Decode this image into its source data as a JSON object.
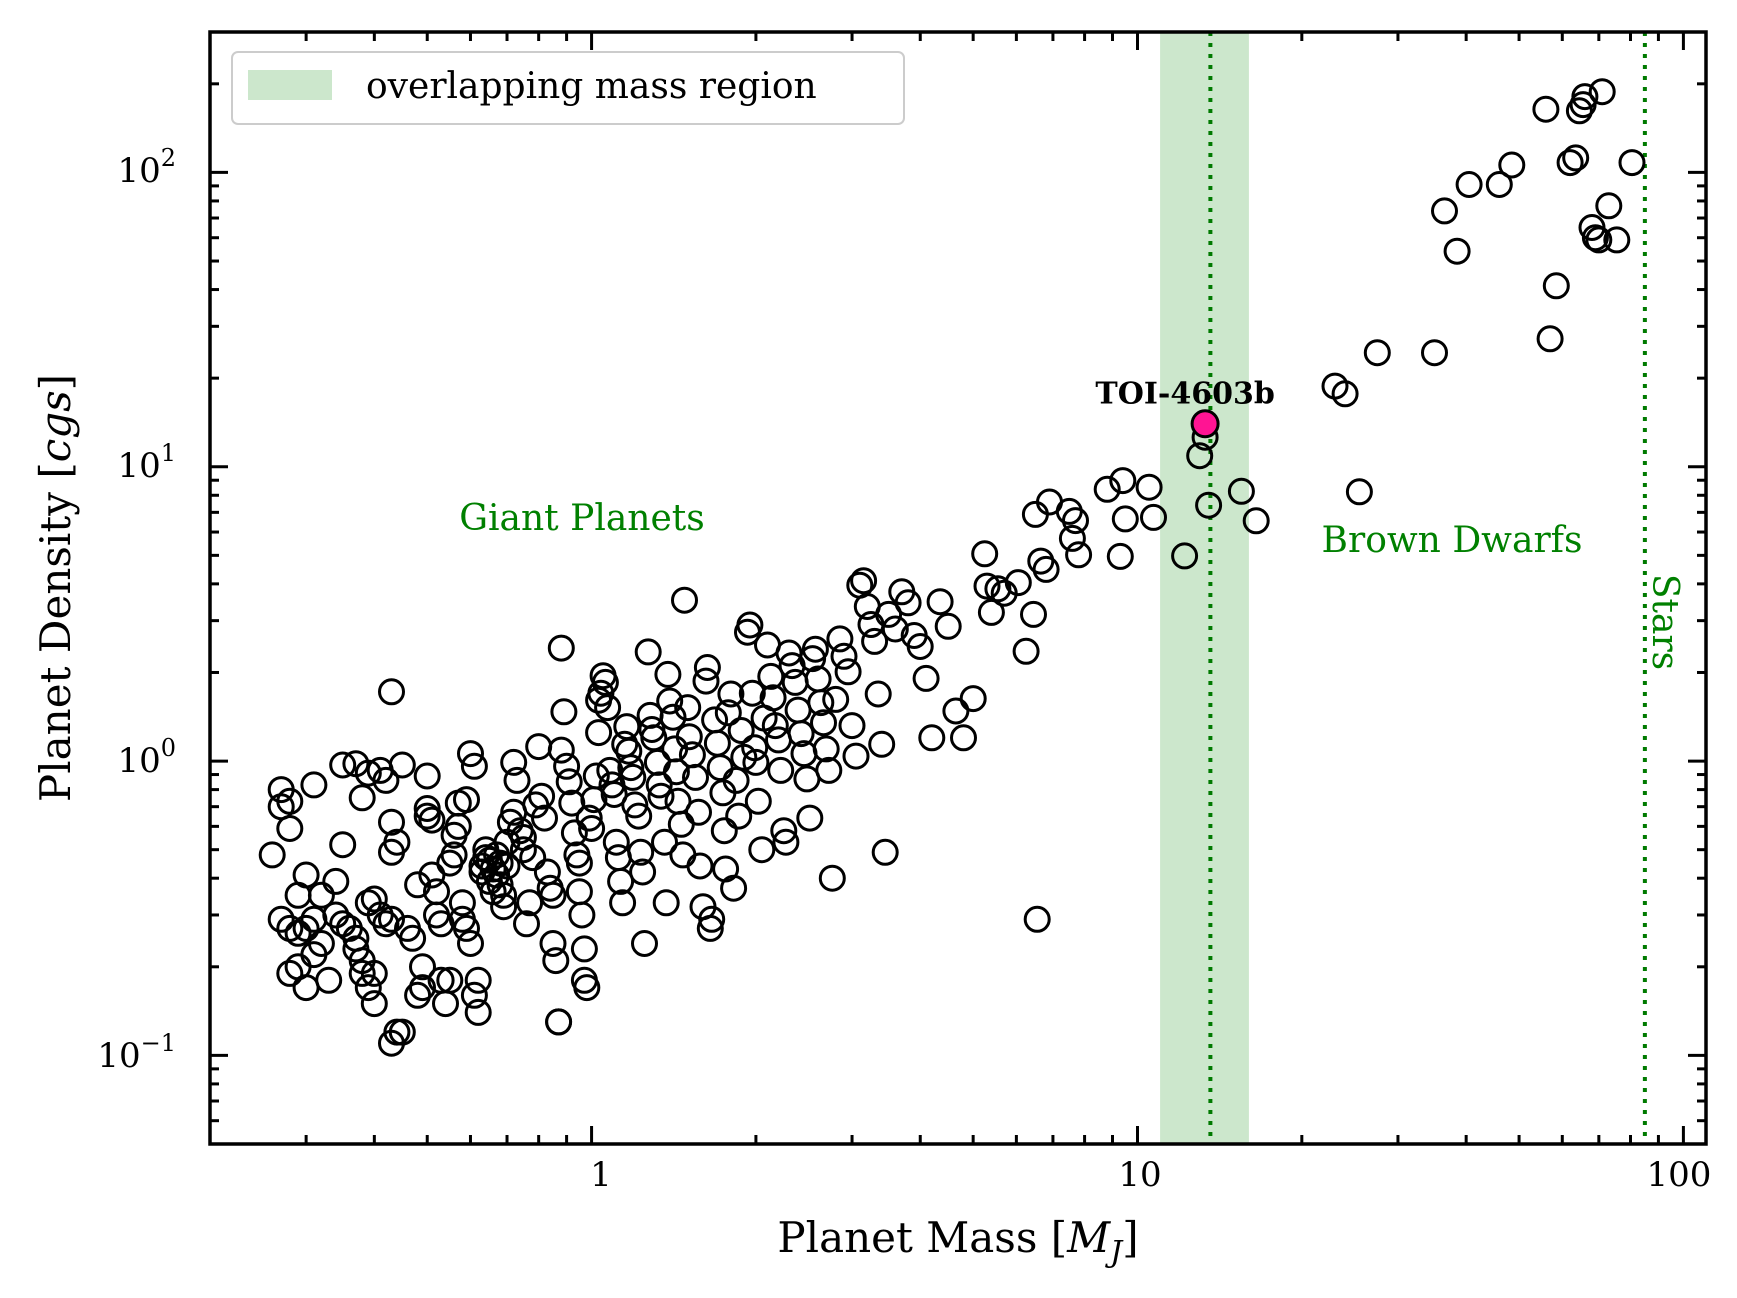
{
  "chart_data": {
    "type": "scatter",
    "xlabel": "Planet Mass [M_J]",
    "ylabel": "Planet Density [cgs]",
    "xscale": "log",
    "yscale": "log",
    "xlim": [
      0.2,
      110
    ],
    "ylim": [
      0.05,
      300
    ],
    "x_tick_labels": [
      "1",
      "10",
      "100"
    ],
    "y_tick_labels": [
      {
        "base": "10",
        "exp": "−1"
      },
      {
        "base": "10",
        "exp": "0"
      },
      {
        "base": "10",
        "exp": "1"
      },
      {
        "base": "10",
        "exp": "2"
      }
    ],
    "grid": false,
    "legend": {
      "position": "top-left",
      "entries": [
        "overlapping mass region"
      ]
    },
    "overlap_region": {
      "x_min": 11,
      "x_max": 16,
      "color": "#8fc98f"
    },
    "reference_lines": [
      {
        "x": 13.6,
        "style": "dotted",
        "color": "#007a00"
      },
      {
        "x": 85,
        "style": "dotted",
        "color": "#007a00"
      }
    ],
    "region_labels": {
      "giant_planets": "Giant Planets",
      "brown_dwarfs": "Brown Dwarfs",
      "stars": "Stars"
    },
    "highlight": {
      "name": "TOI-4603b",
      "x": 13.3,
      "y": 14.0,
      "color": "#ff1493"
    },
    "points": [
      [
        0.26,
        0.48
      ],
      [
        0.27,
        0.8
      ],
      [
        0.27,
        0.7
      ],
      [
        0.28,
        0.59
      ],
      [
        0.28,
        0.73
      ],
      [
        0.27,
        0.29
      ],
      [
        0.28,
        0.27
      ],
      [
        0.29,
        0.26
      ],
      [
        0.3,
        0.27
      ],
      [
        0.31,
        0.29
      ],
      [
        0.29,
        0.35
      ],
      [
        0.3,
        0.41
      ],
      [
        0.31,
        0.83
      ],
      [
        0.28,
        0.19
      ],
      [
        0.29,
        0.2
      ],
      [
        0.3,
        0.17
      ],
      [
        0.31,
        0.22
      ],
      [
        0.32,
        0.24
      ],
      [
        0.33,
        0.18
      ],
      [
        0.32,
        0.35
      ],
      [
        0.34,
        0.39
      ],
      [
        0.34,
        0.3
      ],
      [
        0.35,
        0.28
      ],
      [
        0.36,
        0.27
      ],
      [
        0.37,
        0.23
      ],
      [
        0.37,
        0.25
      ],
      [
        0.38,
        0.21
      ],
      [
        0.38,
        0.19
      ],
      [
        0.39,
        0.17
      ],
      [
        0.4,
        0.15
      ],
      [
        0.35,
        0.52
      ],
      [
        0.35,
        0.97
      ],
      [
        0.37,
        0.98
      ],
      [
        0.38,
        0.75
      ],
      [
        0.39,
        0.91
      ],
      [
        0.41,
        0.93
      ],
      [
        0.42,
        0.86
      ],
      [
        0.4,
        0.34
      ],
      [
        0.41,
        0.3
      ],
      [
        0.42,
        0.28
      ],
      [
        0.39,
        0.33
      ],
      [
        0.4,
        0.19
      ],
      [
        0.43,
        0.29
      ],
      [
        0.43,
        0.62
      ],
      [
        0.44,
        0.53
      ],
      [
        0.45,
        0.97
      ],
      [
        0.43,
        1.72
      ],
      [
        0.43,
        0.11
      ],
      [
        0.44,
        0.12
      ],
      [
        0.45,
        0.12
      ],
      [
        0.43,
        0.49
      ],
      [
        0.46,
        0.27
      ],
      [
        0.47,
        0.25
      ],
      [
        0.48,
        0.38
      ],
      [
        0.48,
        0.16
      ],
      [
        0.49,
        0.2
      ],
      [
        0.49,
        0.17
      ],
      [
        0.5,
        0.65
      ],
      [
        0.5,
        0.69
      ],
      [
        0.51,
        0.63
      ],
      [
        0.5,
        0.89
      ],
      [
        0.51,
        0.41
      ],
      [
        0.52,
        0.36
      ],
      [
        0.52,
        0.3
      ],
      [
        0.53,
        0.28
      ],
      [
        0.53,
        0.18
      ],
      [
        0.54,
        0.15
      ],
      [
        0.55,
        0.18
      ],
      [
        0.55,
        0.45
      ],
      [
        0.56,
        0.48
      ],
      [
        0.56,
        0.56
      ],
      [
        0.57,
        0.6
      ],
      [
        0.57,
        0.72
      ],
      [
        0.58,
        0.33
      ],
      [
        0.58,
        0.29
      ],
      [
        0.59,
        0.27
      ],
      [
        0.59,
        0.74
      ],
      [
        0.6,
        1.06
      ],
      [
        0.61,
        0.96
      ],
      [
        0.6,
        0.24
      ],
      [
        0.61,
        0.16
      ],
      [
        0.62,
        0.14
      ],
      [
        0.62,
        0.18
      ],
      [
        0.63,
        0.44
      ],
      [
        0.63,
        0.42
      ],
      [
        0.64,
        0.47
      ],
      [
        0.64,
        0.5
      ],
      [
        0.65,
        0.39
      ],
      [
        0.65,
        0.46
      ],
      [
        0.66,
        0.43
      ],
      [
        0.66,
        0.36
      ],
      [
        0.67,
        0.41
      ],
      [
        0.67,
        0.48
      ],
      [
        0.68,
        0.45
      ],
      [
        0.68,
        0.38
      ],
      [
        0.69,
        0.35
      ],
      [
        0.69,
        0.32
      ],
      [
        0.7,
        0.44
      ],
      [
        0.7,
        0.53
      ],
      [
        0.71,
        0.62
      ],
      [
        0.72,
        0.67
      ],
      [
        0.72,
        0.99
      ],
      [
        0.73,
        0.86
      ],
      [
        0.74,
        0.58
      ],
      [
        0.75,
        0.5
      ],
      [
        0.75,
        0.55
      ],
      [
        0.76,
        0.28
      ],
      [
        0.77,
        0.33
      ],
      [
        0.78,
        0.47
      ],
      [
        0.79,
        0.71
      ],
      [
        0.8,
        1.12
      ],
      [
        0.81,
        0.76
      ],
      [
        0.82,
        0.64
      ],
      [
        0.83,
        0.42
      ],
      [
        0.84,
        0.37
      ],
      [
        0.85,
        0.35
      ],
      [
        0.85,
        0.24
      ],
      [
        0.86,
        0.21
      ],
      [
        0.87,
        0.13
      ],
      [
        0.87,
        0.13
      ],
      [
        0.88,
        2.42
      ],
      [
        0.88,
        1.09
      ],
      [
        0.89,
        1.47
      ],
      [
        0.9,
        0.96
      ],
      [
        0.91,
        0.85
      ],
      [
        0.92,
        0.72
      ],
      [
        0.93,
        0.57
      ],
      [
        0.94,
        0.48
      ],
      [
        0.95,
        0.45
      ],
      [
        0.95,
        0.36
      ],
      [
        0.96,
        0.3
      ],
      [
        0.97,
        0.23
      ],
      [
        0.97,
        0.18
      ],
      [
        0.98,
        0.17
      ],
      [
        0.99,
        0.64
      ],
      [
        1.0,
        0.59
      ],
      [
        1.01,
        0.74
      ],
      [
        1.02,
        0.89
      ],
      [
        1.03,
        1.25
      ],
      [
        1.03,
        1.61
      ],
      [
        1.04,
        1.7
      ],
      [
        1.05,
        1.95
      ],
      [
        1.06,
        1.85
      ],
      [
        1.07,
        1.52
      ],
      [
        1.08,
        0.93
      ],
      [
        1.09,
        0.83
      ],
      [
        1.1,
        0.77
      ],
      [
        1.11,
        0.53
      ],
      [
        1.12,
        0.47
      ],
      [
        1.13,
        0.39
      ],
      [
        1.14,
        0.33
      ],
      [
        1.15,
        1.14
      ],
      [
        1.16,
        1.31
      ],
      [
        1.17,
        1.08
      ],
      [
        1.18,
        0.95
      ],
      [
        1.19,
        0.88
      ],
      [
        1.2,
        0.71
      ],
      [
        1.22,
        0.65
      ],
      [
        1.23,
        0.49
      ],
      [
        1.24,
        0.42
      ],
      [
        1.25,
        0.24
      ],
      [
        1.27,
        2.35
      ],
      [
        1.28,
        1.43
      ],
      [
        1.29,
        1.28
      ],
      [
        1.3,
        1.2
      ],
      [
        1.32,
        0.99
      ],
      [
        1.33,
        0.83
      ],
      [
        1.34,
        0.76
      ],
      [
        1.36,
        0.53
      ],
      [
        1.37,
        0.33
      ],
      [
        1.38,
        1.97
      ],
      [
        1.39,
        1.6
      ],
      [
        1.41,
        1.41
      ],
      [
        1.42,
        1.1
      ],
      [
        1.43,
        0.92
      ],
      [
        1.44,
        0.73
      ],
      [
        1.46,
        0.61
      ],
      [
        1.47,
        0.48
      ],
      [
        1.48,
        3.52
      ],
      [
        1.5,
        1.52
      ],
      [
        1.51,
        1.21
      ],
      [
        1.53,
        1.05
      ],
      [
        1.55,
        0.88
      ],
      [
        1.57,
        0.67
      ],
      [
        1.58,
        0.44
      ],
      [
        1.6,
        0.32
      ],
      [
        1.62,
        1.87
      ],
      [
        1.63,
        2.08
      ],
      [
        1.65,
        0.27
      ],
      [
        1.66,
        0.29
      ],
      [
        1.68,
        1.38
      ],
      [
        1.7,
        1.15
      ],
      [
        1.72,
        0.95
      ],
      [
        1.74,
        0.78
      ],
      [
        1.75,
        0.58
      ],
      [
        1.76,
        0.43
      ],
      [
        1.78,
        1.46
      ],
      [
        1.8,
        1.69
      ],
      [
        1.82,
        0.37
      ],
      [
        1.84,
        0.86
      ],
      [
        1.86,
        0.65
      ],
      [
        1.88,
        1.27
      ],
      [
        1.9,
        1.03
      ],
      [
        1.93,
        2.74
      ],
      [
        1.95,
        2.9
      ],
      [
        1.97,
        1.7
      ],
      [
        1.99,
        1.11
      ],
      [
        2.0,
        0.99
      ],
      [
        2.02,
        0.73
      ],
      [
        2.05,
        0.5
      ],
      [
        2.07,
        1.4
      ],
      [
        2.1,
        2.48
      ],
      [
        2.13,
        1.94
      ],
      [
        2.15,
        1.64
      ],
      [
        2.17,
        1.32
      ],
      [
        2.2,
        1.18
      ],
      [
        2.22,
        0.93
      ],
      [
        2.25,
        0.58
      ],
      [
        2.27,
        0.53
      ],
      [
        2.3,
        2.33
      ],
      [
        2.33,
        2.11
      ],
      [
        2.36,
        1.85
      ],
      [
        2.39,
        1.49
      ],
      [
        2.42,
        1.24
      ],
      [
        2.45,
        1.06
      ],
      [
        2.48,
        0.87
      ],
      [
        2.51,
        0.64
      ],
      [
        2.54,
        2.23
      ],
      [
        2.57,
        2.4
      ],
      [
        2.6,
        1.9
      ],
      [
        2.63,
        1.58
      ],
      [
        2.66,
        1.35
      ],
      [
        2.69,
        1.1
      ],
      [
        2.72,
        0.93
      ],
      [
        2.76,
        0.4
      ],
      [
        2.8,
        1.62
      ],
      [
        2.85,
        2.6
      ],
      [
        2.9,
        2.27
      ],
      [
        2.95,
        2.01
      ],
      [
        3.0,
        1.32
      ],
      [
        3.05,
        1.04
      ],
      [
        3.1,
        3.96
      ],
      [
        3.15,
        4.1
      ],
      [
        3.2,
        3.35
      ],
      [
        3.25,
        2.91
      ],
      [
        3.3,
        2.55
      ],
      [
        3.35,
        1.69
      ],
      [
        3.4,
        1.14
      ],
      [
        3.45,
        0.49
      ],
      [
        3.5,
        3.15
      ],
      [
        3.6,
        2.81
      ],
      [
        3.7,
        3.76
      ],
      [
        3.8,
        3.45
      ],
      [
        3.9,
        2.67
      ],
      [
        4.0,
        2.45
      ],
      [
        4.1,
        1.91
      ],
      [
        4.2,
        1.2
      ],
      [
        4.35,
        3.48
      ],
      [
        4.5,
        2.87
      ],
      [
        4.65,
        1.48
      ],
      [
        4.8,
        1.2
      ],
      [
        5.0,
        1.63
      ],
      [
        5.25,
        5.06
      ],
      [
        5.3,
        3.93
      ],
      [
        5.4,
        3.2
      ],
      [
        5.55,
        3.85
      ],
      [
        5.7,
        3.72
      ],
      [
        6.05,
        4.04
      ],
      [
        6.25,
        2.36
      ],
      [
        6.45,
        3.15
      ],
      [
        6.5,
        6.89
      ],
      [
        6.65,
        4.78
      ],
      [
        6.8,
        4.48
      ],
      [
        6.9,
        7.59
      ],
      [
        6.55,
        0.29
      ],
      [
        7.5,
        7.05
      ],
      [
        7.7,
        6.56
      ],
      [
        7.6,
        5.71
      ],
      [
        7.8,
        5.02
      ],
      [
        8.8,
        8.38
      ],
      [
        9.4,
        8.97
      ],
      [
        9.5,
        6.65
      ],
      [
        9.3,
        4.96
      ],
      [
        10.5,
        8.52
      ],
      [
        10.7,
        6.73
      ],
      [
        12.2,
        4.98
      ],
      [
        13.0,
        10.9
      ],
      [
        13.3,
        12.6
      ],
      [
        13.5,
        7.4
      ],
      [
        15.5,
        8.25
      ],
      [
        16.5,
        6.55
      ],
      [
        23.0,
        18.8
      ],
      [
        24.0,
        17.7
      ],
      [
        25.5,
        8.22
      ],
      [
        27.5,
        24.4
      ],
      [
        35.0,
        24.4
      ],
      [
        36.5,
        74.0
      ],
      [
        38.5,
        54.0
      ],
      [
        40.5,
        91.0
      ],
      [
        46.0,
        91.0
      ],
      [
        48.5,
        106
      ],
      [
        56.0,
        164
      ],
      [
        57.0,
        27.2
      ],
      [
        58.5,
        41.2
      ],
      [
        62.0,
        108
      ],
      [
        63.5,
        112
      ],
      [
        64.5,
        162
      ],
      [
        65.5,
        170
      ],
      [
        66.0,
        181
      ],
      [
        68.0,
        65.0
      ],
      [
        69.0,
        60.0
      ],
      [
        70.0,
        59.0
      ],
      [
        71.0,
        188
      ],
      [
        73.0,
        77.0
      ],
      [
        75.5,
        59.0
      ],
      [
        80.5,
        108
      ]
    ]
  }
}
